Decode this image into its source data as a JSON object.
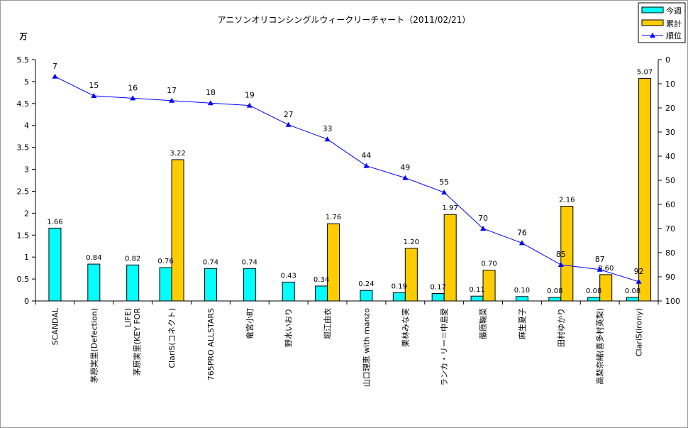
{
  "chart_data": {
    "type": "bar",
    "title": "アニソンオリコンシングルウィークリーチャート（2011/02/21）",
    "unit_label": "万",
    "categories": [
      "SCANDAL",
      "茅原実里(Defection)",
      "茅原実里(KEY FOR LIFE)",
      "ClariS(コネクト)",
      "765PRO ALLSTARS",
      "竜宮小町",
      "野水いおり",
      "堀江由衣",
      "山口理恵 with manzo",
      "栗林みな実",
      "ランカ・リー＝中島愛",
      "藤原鞠菜",
      "麻生夏子",
      "田村ゆかり",
      "高梨奈緒(喜多村英梨)",
      "ClariS(irony)"
    ],
    "series": [
      {
        "name": "今週",
        "color": "#00ffff",
        "axis": "left",
        "values": [
          1.66,
          0.84,
          0.82,
          0.76,
          0.74,
          0.74,
          0.43,
          0.34,
          0.24,
          0.19,
          0.17,
          0.11,
          0.1,
          0.08,
          0.08,
          0.08
        ],
        "labels": [
          "1.66",
          "0.84",
          "0.82",
          "0.76",
          "0.74",
          "0.74",
          "0.43",
          "0.34",
          "0.24",
          "0.19",
          "0.17",
          "0.11",
          "0.10",
          "0.08",
          "0.08",
          "0.08"
        ]
      },
      {
        "name": "累計",
        "color": "#ffcc00",
        "axis": "left",
        "values": [
          null,
          null,
          null,
          3.22,
          null,
          null,
          null,
          1.76,
          null,
          1.2,
          1.97,
          0.7,
          null,
          2.16,
          0.6,
          5.07
        ],
        "labels": [
          null,
          null,
          null,
          "3.22",
          null,
          null,
          null,
          "1.76",
          null,
          "1.20",
          "1.97",
          "0.70",
          null,
          "2.16",
          "0.60",
          "5.07"
        ]
      },
      {
        "name": "順位",
        "color": "#0000ff",
        "axis": "right",
        "type": "line",
        "values": [
          7,
          15,
          16,
          17,
          18,
          19,
          27,
          33,
          44,
          49,
          55,
          70,
          76,
          85,
          87,
          92
        ]
      }
    ],
    "y_left": {
      "min": 0,
      "max": 5.5,
      "ticks": [
        "0",
        "0.5",
        "1",
        "1.5",
        "2",
        "2.5",
        "3",
        "3.5",
        "4",
        "4.5",
        "5",
        "5.5"
      ]
    },
    "y_right": {
      "min": 0,
      "max": 100,
      "reversed": true,
      "ticks": [
        "0",
        "10",
        "20",
        "30",
        "40",
        "50",
        "60",
        "70",
        "80",
        "90",
        "100"
      ]
    },
    "grid": false,
    "legend_position": "top-right",
    "plot_background": "#ffffff"
  }
}
